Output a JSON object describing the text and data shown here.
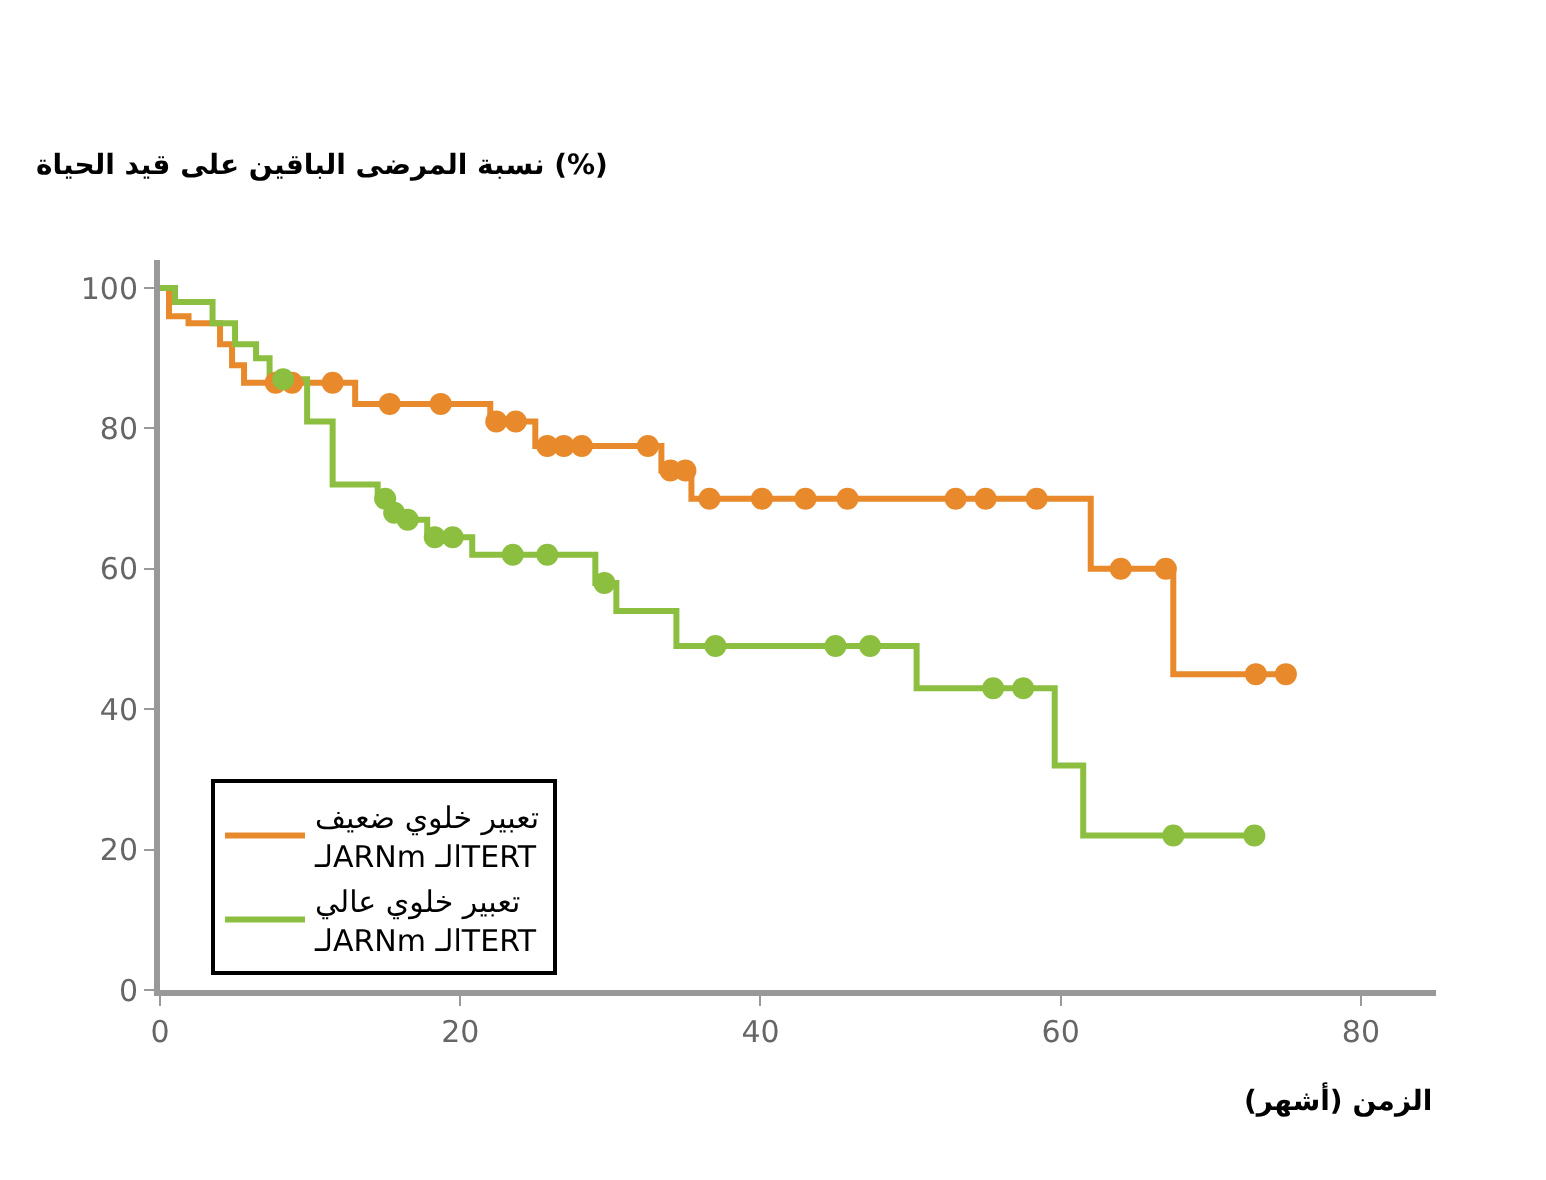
{
  "chart_data": {
    "type": "step",
    "ylabel": "نسبة المرضى الباقين على قيد الحياة (%)",
    "xlabel": "الزمن (أشهر)",
    "xlim": [
      0,
      85
    ],
    "ylim": [
      0,
      104
    ],
    "xticks": [
      0,
      20,
      40,
      60,
      80
    ],
    "yticks": [
      0,
      20,
      40,
      60,
      80,
      100
    ],
    "legend": "bottom left",
    "series": [
      {
        "name": "تعبير خلوي ضعيف\nلـARNm الـTERT",
        "color": "#e8892b",
        "marker": "none",
        "x": [
          0,
          0.6,
          1.9,
          4,
          4.8,
          5.6,
          13,
          22,
          25,
          33.4,
          35.4,
          62,
          67.5,
          75
        ],
        "values": [
          100,
          96,
          95,
          92,
          89,
          86.5,
          83.5,
          81,
          77.5,
          74,
          70,
          60,
          45,
          45
        ]
      },
      {
        "name": "تعبير خلوي عالي\nلـARNm الـTERT",
        "color": "#8cbf3f",
        "marker": "none",
        "x": [
          0,
          1,
          3.5,
          5,
          6.4,
          7.3,
          9.8,
          11.5,
          14.5,
          15.2,
          16,
          17.8,
          20.8,
          29,
          30.4,
          34.4,
          50.4,
          59.6,
          61.5,
          72.9
        ],
        "values": [
          100,
          98,
          95,
          92,
          90,
          87,
          81,
          72,
          70,
          68,
          67,
          64.5,
          62,
          58,
          54,
          49,
          43,
          32,
          22,
          22
        ]
      },
      {
        "color": "#e8892b",
        "type": "scatter",
        "marker": "circle",
        "x": [
          7.7,
          8.8,
          11.5,
          15.3,
          18.7,
          22.4,
          23.7,
          25.8,
          26.9,
          28.1,
          32.5,
          34,
          35,
          36.6,
          40.1,
          43,
          45.8,
          53,
          55,
          58.4,
          64,
          67,
          73,
          75
        ],
        "values": [
          86.5,
          86.5,
          86.5,
          83.5,
          83.5,
          81,
          81,
          77.5,
          77.5,
          77.5,
          77.5,
          74,
          74,
          70,
          70,
          70,
          70,
          70,
          70,
          70,
          60,
          60,
          45,
          45
        ]
      },
      {
        "color": "#8cbf3f",
        "type": "scatter",
        "marker": "circle",
        "x": [
          8.2,
          15,
          15.6,
          16.5,
          18.3,
          19.5,
          23.5,
          25.8,
          29.6,
          37,
          45,
          47.3,
          55.5,
          57.5,
          67.5,
          72.9
        ],
        "values": [
          87,
          70,
          68,
          67,
          64.5,
          64.5,
          62,
          62,
          58,
          49,
          49,
          49,
          43,
          43,
          22,
          22
        ]
      }
    ]
  }
}
